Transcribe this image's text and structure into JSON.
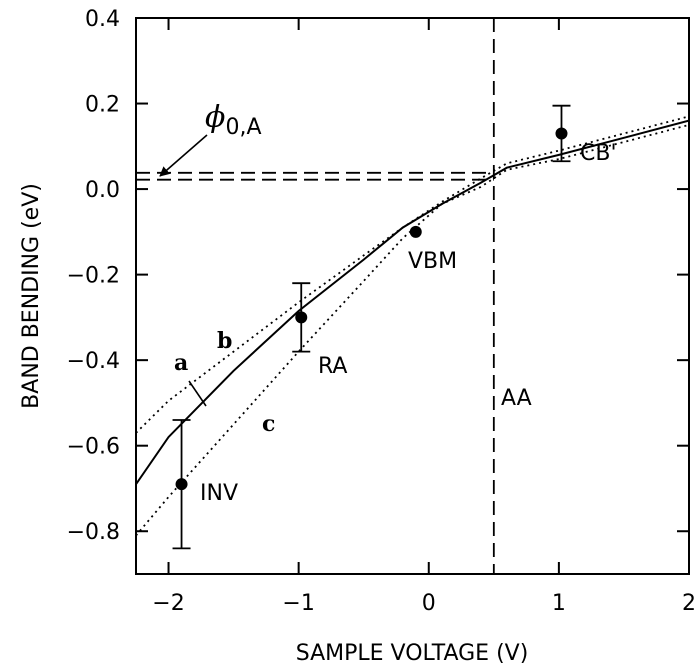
{
  "chart_data": {
    "type": "line",
    "title": "",
    "xlabel": "SAMPLE VOLTAGE (V)",
    "ylabel": "BAND BENDING (eV)",
    "xlim": [
      -2.25,
      2.0
    ],
    "ylim": [
      -0.9,
      0.4
    ],
    "grid": false,
    "legend": "none",
    "x_ticks": [
      -2,
      -1,
      0,
      1,
      2
    ],
    "x_tick_labels": [
      "−2",
      "−1",
      "0",
      "1",
      "2"
    ],
    "y_ticks": [
      0.4,
      0.2,
      0.0,
      -0.2,
      -0.4,
      -0.6,
      -0.8
    ],
    "y_tick_labels": [
      "0.4",
      "0.2",
      "0.0",
      "−0.2",
      "−0.4",
      "−0.6",
      "−0.8"
    ],
    "series": [
      {
        "name": "a",
        "style": "solid",
        "points": [
          [
            -2.25,
            -0.69
          ],
          [
            -2.0,
            -0.58
          ],
          [
            -1.5,
            -0.425
          ],
          [
            -1.0,
            -0.285
          ],
          [
            -0.5,
            -0.165
          ],
          [
            -0.2,
            -0.09
          ],
          [
            0.1,
            -0.035
          ],
          [
            0.4,
            0.015
          ],
          [
            0.6,
            0.05
          ],
          [
            1.0,
            0.08
          ],
          [
            1.5,
            0.12
          ],
          [
            2.0,
            0.16
          ]
        ]
      },
      {
        "name": "b",
        "style": "dotted",
        "points": [
          [
            -2.25,
            -0.57
          ],
          [
            -2.0,
            -0.495
          ],
          [
            -1.5,
            -0.38
          ],
          [
            -1.0,
            -0.265
          ],
          [
            -0.5,
            -0.155
          ],
          [
            -0.2,
            -0.09
          ],
          [
            0.1,
            -0.03
          ],
          [
            0.4,
            0.025
          ],
          [
            0.6,
            0.06
          ],
          [
            1.0,
            0.09
          ],
          [
            1.5,
            0.13
          ],
          [
            2.0,
            0.17
          ]
        ]
      },
      {
        "name": "c",
        "style": "dotted",
        "points": [
          [
            -2.25,
            -0.81
          ],
          [
            -2.0,
            -0.72
          ],
          [
            -1.5,
            -0.55
          ],
          [
            -1.0,
            -0.38
          ],
          [
            -0.5,
            -0.215
          ],
          [
            -0.2,
            -0.115
          ],
          [
            0.1,
            -0.035
          ],
          [
            0.4,
            0.005
          ],
          [
            0.6,
            0.045
          ],
          [
            1.0,
            0.07
          ],
          [
            1.5,
            0.11
          ],
          [
            2.0,
            0.15
          ]
        ]
      }
    ],
    "data_points": [
      {
        "label": "INV",
        "x": -1.9,
        "y": -0.69,
        "err_low": -0.84,
        "err_high": -0.54
      },
      {
        "label": "RA",
        "x": -0.98,
        "y": -0.3,
        "err_low": -0.38,
        "err_high": -0.22
      },
      {
        "label": "VBM",
        "x": -0.1,
        "y": -0.1
      },
      {
        "label": "CB'",
        "x": 1.02,
        "y": 0.13,
        "err_low": 0.065,
        "err_high": 0.195
      }
    ],
    "reference_lines": [
      {
        "orientation": "vertical",
        "x": 0.5,
        "style": "dashed",
        "label": "AA"
      },
      {
        "orientation": "horizontal",
        "y": 0.038,
        "x_end": 0.5,
        "style": "dashed"
      },
      {
        "orientation": "horizontal",
        "y": 0.022,
        "x_end": 0.5,
        "style": "dashed"
      }
    ],
    "annotations": {
      "phi_main": "ϕ",
      "phi_sub": "0,A",
      "inv": "INV",
      "ra": "RA",
      "vbm": "VBM",
      "cb": "CB'",
      "aa": "AA",
      "a": "a",
      "b": "b",
      "c": "c"
    }
  }
}
